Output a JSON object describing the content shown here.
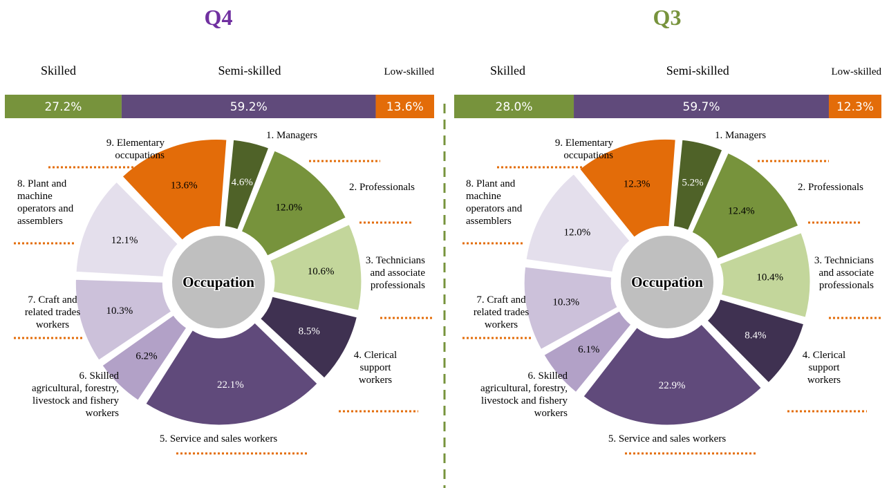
{
  "chart_data": [
    {
      "type": "bar",
      "title": "Q4",
      "stacked": true,
      "orientation": "horizontal",
      "categories": [
        "Skilled",
        "Semi-skilled",
        "Low-skilled"
      ],
      "values": [
        27.2,
        59.2,
        13.6
      ],
      "value_labels": [
        "27.2%",
        "59.2%",
        "13.6%"
      ],
      "colors": [
        "#77933c",
        "#604a7b",
        "#e36c09"
      ],
      "title_color": "#7030a0"
    },
    {
      "type": "pie",
      "center_label": "Occupation",
      "categories": [
        "1. Managers",
        "2. Professionals",
        "3. Technicians\nand associate\nprofessionals",
        "4. Clerical\nsupport\nworkers",
        "5. Service and sales workers",
        "6. Skilled\nagricultural, forestry,\nlivestock and  fishery\nworkers",
        "7. Craft and\nrelated trades\nworkers",
        "8. Plant and\nmachine\noperators and\nassemblers",
        "9. Elementary\noccupations"
      ],
      "values": [
        4.6,
        12.0,
        10.6,
        8.5,
        22.1,
        6.2,
        10.3,
        12.1,
        13.6
      ],
      "value_labels": [
        "4.6%",
        "12.0%",
        "10.6%",
        "8.5%",
        "22.1%",
        "6.2%",
        "10.3%",
        "12.1%",
        "13.6%"
      ],
      "colors": [
        "#4f6228",
        "#77933c",
        "#c3d69b",
        "#3f3151",
        "#604a7b",
        "#b2a1c7",
        "#ccc1da",
        "#e4dfec",
        "#e36c09"
      ]
    },
    {
      "type": "bar",
      "title": "Q3",
      "stacked": true,
      "orientation": "horizontal",
      "categories": [
        "Skilled",
        "Semi-skilled",
        "Low-skilled"
      ],
      "values": [
        28.0,
        59.7,
        12.3
      ],
      "value_labels": [
        "28.0%",
        "59.7%",
        "12.3%"
      ],
      "colors": [
        "#77933c",
        "#604a7b",
        "#e36c09"
      ],
      "title_color": "#77933c"
    },
    {
      "type": "pie",
      "center_label": "Occupation",
      "categories": [
        "1. Managers",
        "2. Professionals",
        "3. Technicians\nand associate\nprofessionals",
        "4. Clerical\nsupport\nworkers",
        "5. Service and sales workers",
        "6. Skilled\nagricultural, forestry,\nlivestock and  fishery\nworkers",
        "7. Craft and\nrelated trades\nworkers",
        "8. Plant and\nmachine\noperators and\nassemblers",
        "9. Elementary\noccupations"
      ],
      "values": [
        5.2,
        12.4,
        10.4,
        8.4,
        22.9,
        6.1,
        10.3,
        12.0,
        12.3
      ],
      "value_labels": [
        "5.2%",
        "12.4%",
        "10.4%",
        "8.4%",
        "22.9%",
        "6.1%",
        "10.3%",
        "12.0%",
        "12.3%"
      ],
      "colors": [
        "#4f6228",
        "#77933c",
        "#c3d69b",
        "#3f3151",
        "#604a7b",
        "#b2a1c7",
        "#ccc1da",
        "#e4dfec",
        "#e36c09"
      ]
    }
  ]
}
